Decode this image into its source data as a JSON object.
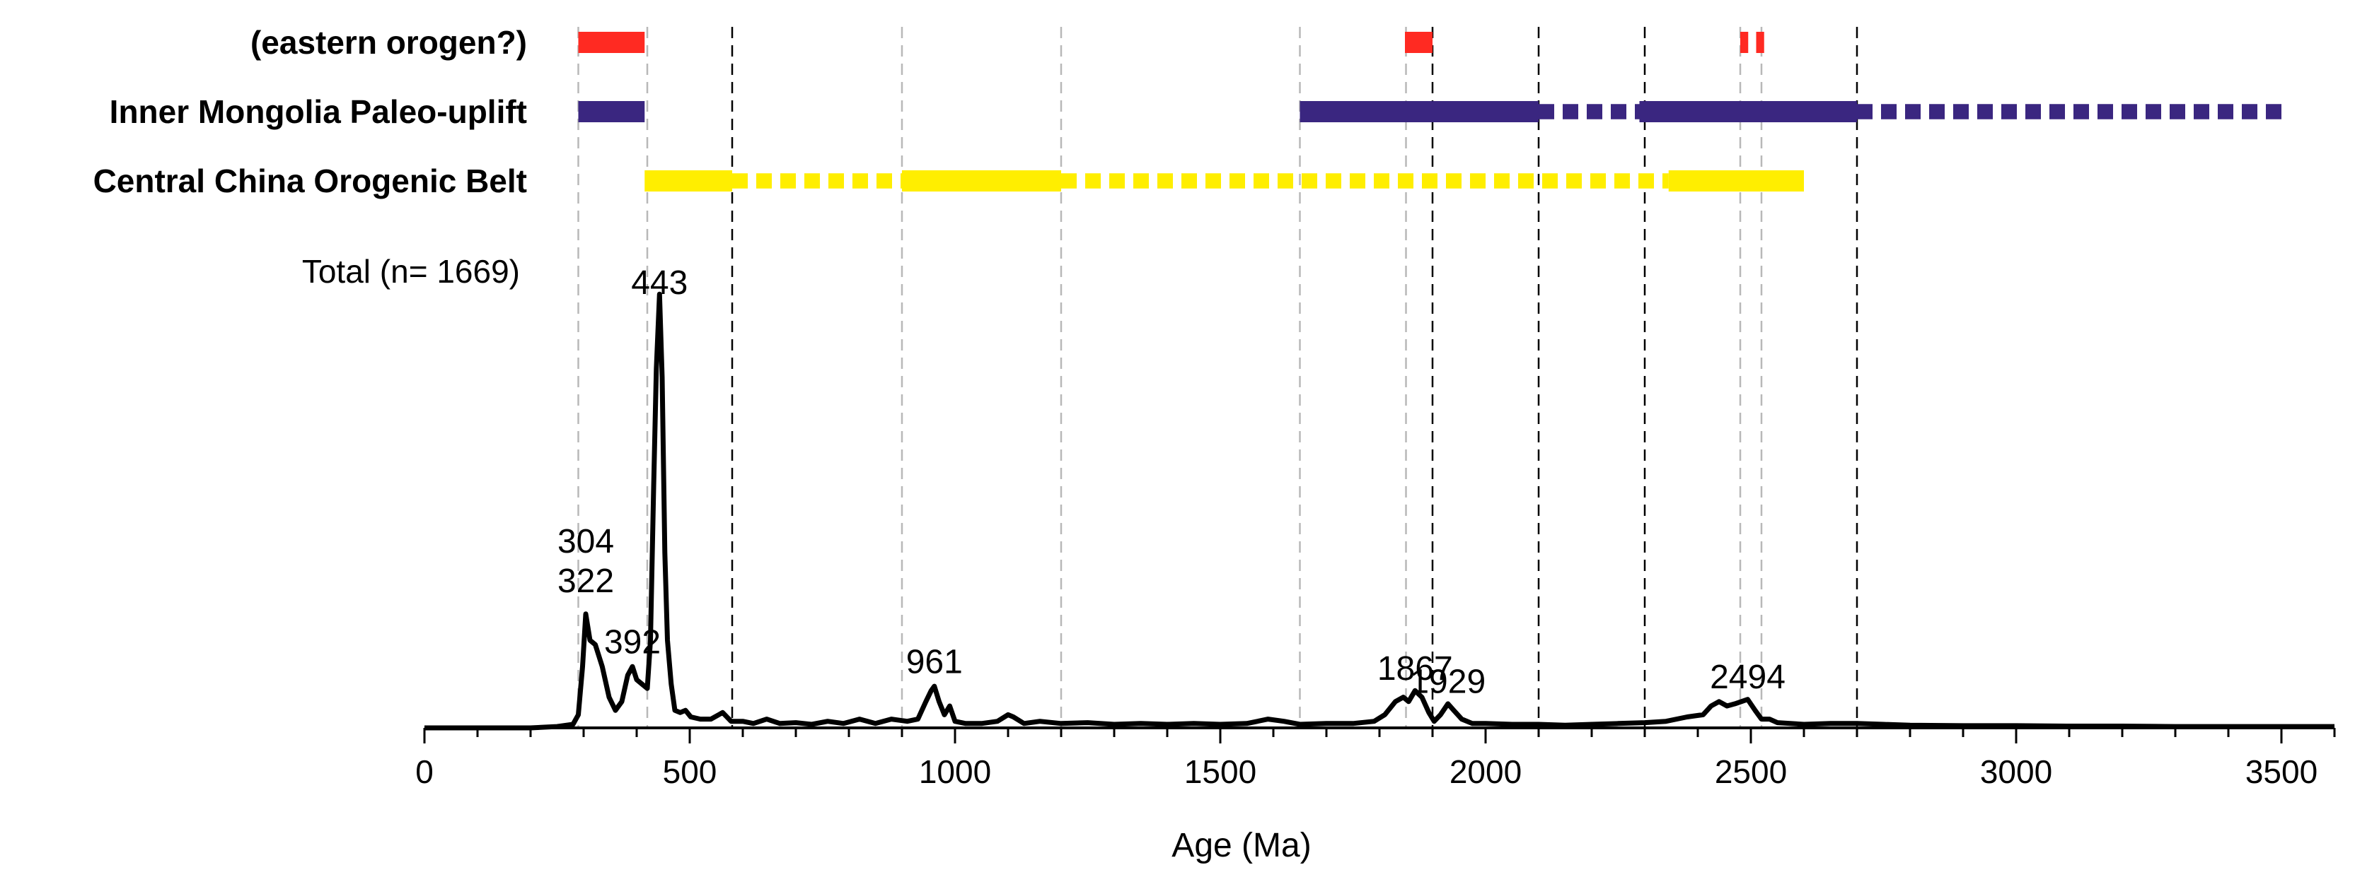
{
  "chart_data": {
    "type": "line",
    "title": "",
    "xlabel": "Age (Ma)",
    "ylabel": "",
    "xlim": [
      0,
      3600
    ],
    "xticks": [
      0,
      500,
      1000,
      1500,
      2000,
      2500,
      3000,
      3500
    ],
    "x_minor_step": 100,
    "series": [
      {
        "name": "Total (n= 1669)",
        "label": "Total (n= 1669)",
        "color": "#000000",
        "points": [
          [
            0,
            0
          ],
          [
            200,
            0
          ],
          [
            250,
            0.3
          ],
          [
            280,
            0.8
          ],
          [
            290,
            3
          ],
          [
            298,
            14
          ],
          [
            304,
            26
          ],
          [
            312,
            20
          ],
          [
            322,
            19
          ],
          [
            335,
            14
          ],
          [
            348,
            7
          ],
          [
            360,
            4
          ],
          [
            372,
            6
          ],
          [
            383,
            12
          ],
          [
            392,
            14
          ],
          [
            400,
            11
          ],
          [
            410,
            10
          ],
          [
            420,
            9
          ],
          [
            426,
            20
          ],
          [
            432,
            55
          ],
          [
            437,
            82
          ],
          [
            443,
            99
          ],
          [
            448,
            80
          ],
          [
            453,
            40
          ],
          [
            458,
            20
          ],
          [
            465,
            10
          ],
          [
            472,
            4
          ],
          [
            482,
            3.5
          ],
          [
            492,
            4
          ],
          [
            502,
            2.5
          ],
          [
            520,
            2
          ],
          [
            540,
            2
          ],
          [
            562,
            3.5
          ],
          [
            578,
            1.5
          ],
          [
            600,
            1.5
          ],
          [
            620,
            1
          ],
          [
            645,
            2
          ],
          [
            670,
            1
          ],
          [
            700,
            1.2
          ],
          [
            730,
            0.8
          ],
          [
            760,
            1.5
          ],
          [
            790,
            1
          ],
          [
            820,
            2
          ],
          [
            850,
            1
          ],
          [
            880,
            2
          ],
          [
            910,
            1.5
          ],
          [
            930,
            2
          ],
          [
            945,
            6
          ],
          [
            955,
            8.5
          ],
          [
            961,
            9.5
          ],
          [
            970,
            6
          ],
          [
            980,
            3
          ],
          [
            990,
            5
          ],
          [
            1000,
            1.5
          ],
          [
            1020,
            1
          ],
          [
            1050,
            1
          ],
          [
            1080,
            1.5
          ],
          [
            1100,
            3
          ],
          [
            1110,
            2.5
          ],
          [
            1130,
            1
          ],
          [
            1160,
            1.5
          ],
          [
            1200,
            1
          ],
          [
            1250,
            1.2
          ],
          [
            1300,
            0.8
          ],
          [
            1350,
            1
          ],
          [
            1400,
            0.8
          ],
          [
            1450,
            1
          ],
          [
            1500,
            0.8
          ],
          [
            1550,
            1
          ],
          [
            1590,
            2
          ],
          [
            1620,
            1.5
          ],
          [
            1650,
            0.8
          ],
          [
            1700,
            1
          ],
          [
            1750,
            1
          ],
          [
            1790,
            1.5
          ],
          [
            1810,
            3
          ],
          [
            1830,
            6
          ],
          [
            1845,
            7
          ],
          [
            1855,
            6
          ],
          [
            1867,
            8.5
          ],
          [
            1880,
            7
          ],
          [
            1893,
            3.5
          ],
          [
            1903,
            1.5
          ],
          [
            1915,
            3
          ],
          [
            1929,
            5.5
          ],
          [
            1940,
            4
          ],
          [
            1955,
            2
          ],
          [
            1975,
            1
          ],
          [
            2000,
            1
          ],
          [
            2050,
            0.8
          ],
          [
            2100,
            0.8
          ],
          [
            2150,
            0.6
          ],
          [
            2200,
            0.8
          ],
          [
            2250,
            1
          ],
          [
            2300,
            1.2
          ],
          [
            2340,
            1.5
          ],
          [
            2380,
            2.5
          ],
          [
            2410,
            3
          ],
          [
            2425,
            5
          ],
          [
            2440,
            6
          ],
          [
            2455,
            5
          ],
          [
            2470,
            5.5
          ],
          [
            2494,
            6.5
          ],
          [
            2508,
            4
          ],
          [
            2520,
            2
          ],
          [
            2535,
            2
          ],
          [
            2550,
            1.2
          ],
          [
            2600,
            0.8
          ],
          [
            2650,
            1
          ],
          [
            2700,
            1
          ],
          [
            2750,
            0.8
          ],
          [
            2800,
            0.6
          ],
          [
            2900,
            0.5
          ],
          [
            3000,
            0.5
          ],
          [
            3100,
            0.4
          ],
          [
            3200,
            0.4
          ],
          [
            3300,
            0.3
          ],
          [
            3400,
            0.3
          ],
          [
            3600,
            0.3
          ]
        ]
      }
    ],
    "peak_labels": [
      {
        "text": "443",
        "x": 443,
        "y": 99
      },
      {
        "text": "304",
        "x": 304,
        "y": 40
      },
      {
        "text": "322",
        "x": 304,
        "y": 31
      },
      {
        "text": "392",
        "x": 392,
        "y": 17
      },
      {
        "text": "961",
        "x": 961,
        "y": 12.5
      },
      {
        "text": "1867",
        "x": 1867,
        "y": 11
      },
      {
        "text": "1929",
        "x": 1929,
        "y": 8
      },
      {
        "text": "2494",
        "x": 2494,
        "y": 9
      }
    ],
    "reference_lines": [
      {
        "x": 290,
        "style": "light"
      },
      {
        "x": 420,
        "style": "light"
      },
      {
        "x": 580,
        "style": "dark"
      },
      {
        "x": 900,
        "style": "light"
      },
      {
        "x": 1200,
        "style": "light"
      },
      {
        "x": 1650,
        "style": "light"
      },
      {
        "x": 1850,
        "style": "light"
      },
      {
        "x": 1900,
        "style": "dark"
      },
      {
        "x": 2100,
        "style": "dark"
      },
      {
        "x": 2300,
        "style": "dark"
      },
      {
        "x": 2480,
        "style": "light"
      },
      {
        "x": 2520,
        "style": "light"
      },
      {
        "x": 2700,
        "style": "dark"
      }
    ],
    "source_bars": [
      {
        "label": "(eastern orogen?)",
        "color": "#ff2a22",
        "segments": [
          {
            "from": 290,
            "to": 415,
            "style": "solid"
          },
          {
            "from": 1848,
            "to": 1900,
            "style": "solid"
          },
          {
            "from": 2480,
            "to": 2495,
            "style": "solid"
          },
          {
            "from": 2510,
            "to": 2525,
            "style": "solid"
          }
        ]
      },
      {
        "label": "Inner Mongolia Paleo-uplift",
        "color": "#3a2680",
        "segments": [
          {
            "from": 290,
            "to": 415,
            "style": "solid"
          },
          {
            "from": 1650,
            "to": 2100,
            "style": "solid"
          },
          {
            "from": 2100,
            "to": 2290,
            "style": "dotted"
          },
          {
            "from": 2290,
            "to": 2700,
            "style": "solid"
          },
          {
            "from": 2700,
            "to": 3500,
            "style": "dotted"
          }
        ]
      },
      {
        "label": "Central China Orogenic Belt",
        "color": "#ffee00",
        "segments": [
          {
            "from": 415,
            "to": 580,
            "style": "solid"
          },
          {
            "from": 580,
            "to": 900,
            "style": "dotted"
          },
          {
            "from": 900,
            "to": 1200,
            "style": "solid"
          },
          {
            "from": 1200,
            "to": 2345,
            "style": "dotted"
          },
          {
            "from": 2345,
            "to": 2600,
            "style": "solid"
          }
        ]
      }
    ]
  }
}
